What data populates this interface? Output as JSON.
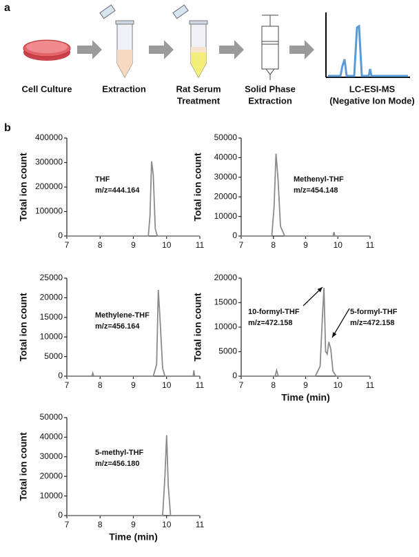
{
  "panel_labels": [
    "a",
    "b"
  ],
  "workflow": {
    "steps": [
      [
        "Cell Culture"
      ],
      [
        "Extraction"
      ],
      [
        "Rat Serum",
        "Treatment"
      ],
      [
        "Solid Phase",
        "Extraction"
      ],
      [
        "LC-ESI-MS",
        "(Negative Ion Mode)"
      ]
    ]
  },
  "chart_data": [
    {
      "type": "line",
      "ylabel": "Total ion count",
      "color": "#8a8a8a",
      "annotations": [
        "THF",
        "m/z=444.164"
      ],
      "x": [
        7,
        9.45,
        9.5,
        9.55,
        9.6,
        9.66,
        9.72,
        11
      ],
      "values": [
        0,
        0,
        80000,
        305000,
        250000,
        30000,
        0,
        0
      ],
      "xlim": [
        7,
        11
      ],
      "xticks": [
        7,
        8,
        9,
        10,
        11
      ],
      "ylim": [
        0,
        400000
      ],
      "yticks": [
        0,
        100000,
        200000,
        300000,
        400000
      ]
    },
    {
      "type": "line",
      "ylabel": "Total ion count",
      "color": "#8a8a8a",
      "annotations": [
        "Methenyl-THF",
        "m/z=454.148"
      ],
      "x": [
        7,
        7.95,
        8.02,
        8.08,
        8.14,
        8.22,
        8.35,
        9.85,
        9.88,
        9.91,
        11
      ],
      "values": [
        0,
        0,
        15000,
        42000,
        30000,
        5000,
        0,
        0,
        2000,
        0,
        0
      ],
      "xlim": [
        7,
        11
      ],
      "xticks": [
        7,
        8,
        9,
        10,
        11
      ],
      "ylim": [
        0,
        50000
      ],
      "yticks": [
        0,
        10000,
        20000,
        30000,
        40000,
        50000
      ]
    },
    {
      "type": "line",
      "ylabel": "Total ion count",
      "color": "#8a8a8a",
      "annotations": [
        "Methylene-THF",
        "m/z=456.164"
      ],
      "x": [
        7,
        7.75,
        7.78,
        7.81,
        9.6,
        9.7,
        9.75,
        9.8,
        9.88,
        9.95,
        10.8,
        10.82,
        10.84,
        11
      ],
      "values": [
        0,
        0,
        800,
        0,
        0,
        3000,
        22000,
        15000,
        2000,
        0,
        0,
        1500,
        0,
        0
      ],
      "xlim": [
        7,
        11
      ],
      "xticks": [
        7,
        8,
        9,
        10,
        11
      ],
      "ylim": [
        0,
        25000
      ],
      "yticks": [
        0,
        5000,
        10000,
        15000,
        20000,
        25000
      ]
    },
    {
      "type": "line",
      "ylabel": "Total ion count",
      "xlabel": "Time (min)",
      "color": "#8a8a8a",
      "annotations": [
        "10-formyl-THF",
        "m/z=472.158",
        "5-formyl-THF",
        "m/z=472.158"
      ],
      "x": [
        7,
        8.05,
        8.1,
        8.15,
        9.3,
        9.45,
        9.52,
        9.57,
        9.62,
        9.67,
        9.72,
        9.78,
        9.85,
        9.95,
        11
      ],
      "values": [
        0,
        0,
        1200,
        0,
        0,
        2000,
        12000,
        18000,
        5000,
        4500,
        7000,
        5500,
        1000,
        0,
        0
      ],
      "xlim": [
        7,
        11
      ],
      "xticks": [
        7,
        8,
        9,
        10,
        11
      ],
      "ylim": [
        0,
        20000
      ],
      "yticks": [
        0,
        5000,
        10000,
        15000,
        20000
      ]
    },
    {
      "type": "line",
      "ylabel": "Total ion count",
      "xlabel": "Time (min)",
      "color": "#8a8a8a",
      "annotations": [
        "5-methyl-THF",
        "m/z=456.180"
      ],
      "x": [
        7,
        9.88,
        9.95,
        10.0,
        10.05,
        10.12,
        11
      ],
      "values": [
        0,
        0,
        20000,
        41000,
        15000,
        0,
        0
      ],
      "xlim": [
        7,
        11
      ],
      "xticks": [
        7,
        8,
        9,
        10,
        11
      ],
      "ylim": [
        0,
        50000
      ],
      "yticks": [
        0,
        10000,
        20000,
        30000,
        40000,
        50000
      ]
    }
  ]
}
